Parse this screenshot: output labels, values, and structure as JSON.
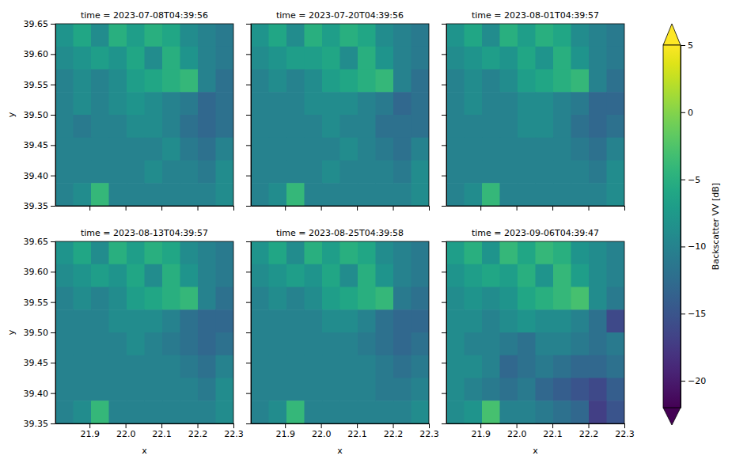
{
  "chart_data": {
    "type": "heatmap",
    "color": "viridis",
    "xlabel": "x",
    "ylabel": "y",
    "xlim": [
      21.805,
      22.3
    ],
    "ylim": [
      39.35,
      39.65
    ],
    "xticks": [
      21.9,
      {
        "value": 22.0,
        "label": "22.0"
      },
      22.1,
      22.2,
      22.3
    ],
    "yticks": [
      39.35,
      {
        "value": 39.4,
        "label": "39.40"
      },
      39.45,
      {
        "value": 39.5,
        "label": "39.50"
      },
      39.55,
      {
        "value": 39.6,
        "label": "39.60"
      },
      39.65
    ],
    "colorbar": {
      "label": "Backscatter VV [dB]",
      "range": [
        -22,
        5
      ],
      "ticks": [
        5,
        0,
        {
          "value": -5,
          "label": "−5"
        },
        {
          "value": -10,
          "label": "−10"
        },
        {
          "value": -15,
          "label": "−15"
        },
        {
          "value": -20,
          "label": "−20"
        }
      ]
    },
    "panels": [
      {
        "title": "time = 2023-07-08T04:39:56",
        "cells": [
          [
            -8,
            -6,
            -9,
            -5,
            -7,
            -5,
            -6,
            -9,
            -10,
            -11
          ],
          [
            -9,
            -8,
            -7,
            -8,
            -6,
            -9,
            -5,
            -8,
            -10,
            -11
          ],
          [
            -10,
            -9,
            -10,
            -9,
            -7,
            -6,
            -5,
            -4,
            -10,
            -12
          ],
          [
            -10,
            -9,
            -10,
            -9,
            -8,
            -9,
            -10,
            -11,
            -13,
            -12
          ],
          [
            -10,
            -11,
            -10,
            -10,
            -9,
            -9,
            -10,
            -12,
            -13,
            -12
          ],
          [
            -10,
            -10,
            -10,
            -10,
            -10,
            -10,
            -9,
            -11,
            -12,
            -10
          ],
          [
            -10,
            -10,
            -10,
            -10,
            -10,
            -9,
            -10,
            -10,
            -11,
            -9
          ],
          [
            -10,
            -9,
            -4,
            -10,
            -10,
            -10,
            -10,
            -10,
            -10,
            -9
          ]
        ]
      },
      {
        "title": "time = 2023-07-20T04:39:56",
        "cells": [
          [
            -8,
            -6,
            -9,
            -5,
            -7,
            -5,
            -6,
            -9,
            -10,
            -11
          ],
          [
            -9,
            -8,
            -7,
            -7,
            -6,
            -9,
            -5,
            -8,
            -10,
            -11
          ],
          [
            -10,
            -9,
            -10,
            -9,
            -7,
            -6,
            -5,
            -4,
            -10,
            -12
          ],
          [
            -10,
            -10,
            -10,
            -9,
            -9,
            -9,
            -10,
            -11,
            -13,
            -12
          ],
          [
            -10,
            -10,
            -10,
            -10,
            -9,
            -10,
            -10,
            -12,
            -12,
            -12
          ],
          [
            -10,
            -10,
            -10,
            -10,
            -10,
            -9,
            -10,
            -11,
            -12,
            -10
          ],
          [
            -10,
            -10,
            -10,
            -10,
            -9,
            -10,
            -10,
            -10,
            -11,
            -9
          ],
          [
            -10,
            -9,
            -4,
            -10,
            -10,
            -10,
            -10,
            -10,
            -10,
            -9
          ]
        ]
      },
      {
        "title": "time = 2023-08-01T04:39:57",
        "cells": [
          [
            -8,
            -6,
            -9,
            -5,
            -7,
            -5,
            -6,
            -9,
            -10,
            -11
          ],
          [
            -9,
            -8,
            -7,
            -8,
            -6,
            -8,
            -5,
            -8,
            -10,
            -11
          ],
          [
            -10,
            -9,
            -10,
            -9,
            -7,
            -6,
            -5,
            -4,
            -10,
            -12
          ],
          [
            -10,
            -9,
            -10,
            -10,
            -9,
            -9,
            -10,
            -11,
            -13,
            -13
          ],
          [
            -10,
            -10,
            -10,
            -10,
            -9,
            -9,
            -10,
            -12,
            -13,
            -12
          ],
          [
            -10,
            -10,
            -10,
            -10,
            -10,
            -10,
            -10,
            -11,
            -12,
            -10
          ],
          [
            -10,
            -10,
            -10,
            -10,
            -10,
            -10,
            -10,
            -10,
            -11,
            -9
          ],
          [
            -10,
            -9,
            -4,
            -10,
            -10,
            -10,
            -10,
            -10,
            -10,
            -9
          ]
        ]
      },
      {
        "title": "time = 2023-08-13T04:39:57",
        "cells": [
          [
            -8,
            -6,
            -9,
            -5,
            -7,
            -5,
            -6,
            -9,
            -10,
            -11
          ],
          [
            -9,
            -8,
            -7,
            -8,
            -6,
            -9,
            -5,
            -8,
            -10,
            -11
          ],
          [
            -10,
            -9,
            -10,
            -9,
            -7,
            -6,
            -5,
            -4,
            -10,
            -12
          ],
          [
            -10,
            -10,
            -10,
            -9,
            -9,
            -9,
            -10,
            -12,
            -13,
            -13
          ],
          [
            -10,
            -10,
            -10,
            -10,
            -9,
            -10,
            -11,
            -12,
            -13,
            -12
          ],
          [
            -10,
            -10,
            -10,
            -10,
            -10,
            -10,
            -10,
            -11,
            -12,
            -10
          ],
          [
            -10,
            -10,
            -10,
            -10,
            -10,
            -10,
            -10,
            -10,
            -11,
            -9
          ],
          [
            -10,
            -9,
            -4,
            -10,
            -10,
            -10,
            -10,
            -10,
            -10,
            -9
          ]
        ]
      },
      {
        "title": "time = 2023-08-25T04:39:58",
        "cells": [
          [
            -8,
            -6,
            -9,
            -5,
            -7,
            -5,
            -6,
            -9,
            -10,
            -11
          ],
          [
            -9,
            -8,
            -7,
            -8,
            -6,
            -9,
            -5,
            -8,
            -10,
            -11
          ],
          [
            -10,
            -9,
            -10,
            -9,
            -7,
            -6,
            -5,
            -4,
            -11,
            -12
          ],
          [
            -10,
            -10,
            -10,
            -10,
            -9,
            -9,
            -10,
            -12,
            -13,
            -13
          ],
          [
            -10,
            -10,
            -10,
            -10,
            -10,
            -10,
            -11,
            -12,
            -13,
            -12
          ],
          [
            -10,
            -10,
            -10,
            -10,
            -10,
            -10,
            -10,
            -11,
            -12,
            -11
          ],
          [
            -10,
            -10,
            -10,
            -10,
            -10,
            -10,
            -10,
            -11,
            -11,
            -10
          ],
          [
            -10,
            -9,
            -4,
            -10,
            -10,
            -10,
            -10,
            -10,
            -10,
            -9
          ]
        ]
      },
      {
        "title": "time = 2023-09-06T04:39:47",
        "cells": [
          [
            -7,
            -5,
            -8,
            -4,
            -6,
            -4,
            -5,
            -8,
            -9,
            -10
          ],
          [
            -8,
            -7,
            -6,
            -7,
            -5,
            -8,
            -4,
            -7,
            -9,
            -10
          ],
          [
            -9,
            -8,
            -9,
            -8,
            -6,
            -5,
            -4,
            -3,
            -9,
            -11
          ],
          [
            -9,
            -9,
            -10,
            -9,
            -8,
            -9,
            -9,
            -10,
            -12,
            -16
          ],
          [
            -9,
            -10,
            -10,
            -11,
            -12,
            -10,
            -10,
            -11,
            -12,
            -11
          ],
          [
            -9,
            -9,
            -10,
            -13,
            -12,
            -11,
            -12,
            -13,
            -13,
            -12
          ],
          [
            -9,
            -10,
            -11,
            -12,
            -11,
            -13,
            -14,
            -15,
            -16,
            -14
          ],
          [
            -9,
            -8,
            -3,
            -10,
            -10,
            -11,
            -12,
            -13,
            -17,
            -15
          ]
        ]
      }
    ]
  }
}
